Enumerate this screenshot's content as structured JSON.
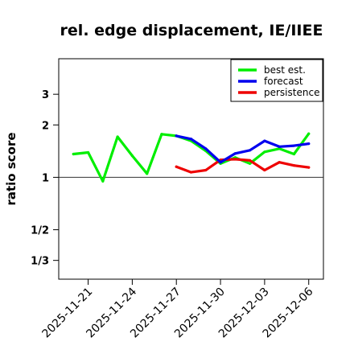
{
  "chart_data": {
    "type": "line",
    "title": "rel. edge displacement, IE/IIEE",
    "ylabel": "ratio score",
    "y_scale": "log",
    "y_ticks": [
      {
        "value": 0.3333,
        "label": "1/3"
      },
      {
        "value": 0.5,
        "label": "1/2"
      },
      {
        "value": 1,
        "label": "1"
      },
      {
        "value": 2,
        "label": "2"
      },
      {
        "value": 3,
        "label": "3"
      }
    ],
    "reference_line": 1,
    "ylim": [
      0.26,
      4.8
    ],
    "xlim": [
      "2025-11-19",
      "2025-12-07"
    ],
    "x_ticks": [
      {
        "date": "2025-11-21",
        "label": "2025-11-21",
        "color": "#000000"
      },
      {
        "date": "2025-11-24",
        "label": "2025-11-24",
        "color": "#000000"
      },
      {
        "date": "2025-11-27",
        "label": "2025-11-27",
        "color": "#1a8a1a"
      },
      {
        "date": "2025-11-30",
        "label": "2025-11-30",
        "color": "#000000"
      },
      {
        "date": "2025-12-03",
        "label": "2025-12-03",
        "color": "#000000"
      },
      {
        "date": "2025-12-06",
        "label": "2025-12-06",
        "color": "#000000"
      }
    ],
    "legend_position": "top-right",
    "series": [
      {
        "name": "best est.",
        "color": "#00ee00",
        "points": [
          {
            "x": "2025-11-20",
            "y": 1.36
          },
          {
            "x": "2025-11-21",
            "y": 1.39
          },
          {
            "x": "2025-11-22",
            "y": 0.95
          },
          {
            "x": "2025-11-23",
            "y": 1.71
          },
          {
            "x": "2025-11-24",
            "y": 1.33
          },
          {
            "x": "2025-11-25",
            "y": 1.05
          },
          {
            "x": "2025-11-26",
            "y": 1.77
          },
          {
            "x": "2025-11-27",
            "y": 1.73
          },
          {
            "x": "2025-11-28",
            "y": 1.62
          },
          {
            "x": "2025-11-29",
            "y": 1.42
          },
          {
            "x": "2025-11-30",
            "y": 1.2
          },
          {
            "x": "2025-12-01",
            "y": 1.3
          },
          {
            "x": "2025-12-02",
            "y": 1.2
          },
          {
            "x": "2025-12-03",
            "y": 1.4
          },
          {
            "x": "2025-12-04",
            "y": 1.46
          },
          {
            "x": "2025-12-05",
            "y": 1.36
          },
          {
            "x": "2025-12-06",
            "y": 1.78
          }
        ]
      },
      {
        "name": "forecast",
        "color": "#0000ee",
        "points": [
          {
            "x": "2025-11-27",
            "y": 1.73
          },
          {
            "x": "2025-11-28",
            "y": 1.66
          },
          {
            "x": "2025-11-29",
            "y": 1.46
          },
          {
            "x": "2025-11-30",
            "y": 1.22
          },
          {
            "x": "2025-12-01",
            "y": 1.37
          },
          {
            "x": "2025-12-02",
            "y": 1.43
          },
          {
            "x": "2025-12-03",
            "y": 1.62
          },
          {
            "x": "2025-12-04",
            "y": 1.5
          },
          {
            "x": "2025-12-05",
            "y": 1.52
          },
          {
            "x": "2025-12-06",
            "y": 1.56
          }
        ]
      },
      {
        "name": "persistence",
        "color": "#ee0000",
        "points": [
          {
            "x": "2025-11-27",
            "y": 1.15
          },
          {
            "x": "2025-11-28",
            "y": 1.07
          },
          {
            "x": "2025-11-29",
            "y": 1.1
          },
          {
            "x": "2025-11-30",
            "y": 1.26
          },
          {
            "x": "2025-12-01",
            "y": 1.27
          },
          {
            "x": "2025-12-02",
            "y": 1.25
          },
          {
            "x": "2025-12-03",
            "y": 1.1
          },
          {
            "x": "2025-12-04",
            "y": 1.22
          },
          {
            "x": "2025-12-05",
            "y": 1.17
          },
          {
            "x": "2025-12-06",
            "y": 1.14
          }
        ]
      }
    ]
  }
}
